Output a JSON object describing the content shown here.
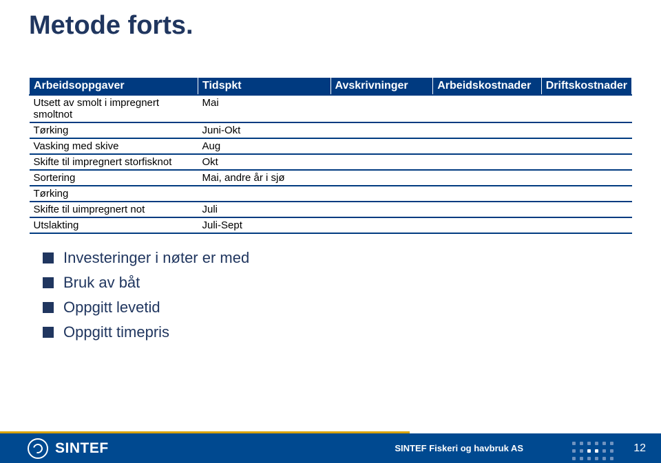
{
  "title": "Metode forts.",
  "table": {
    "headers": [
      "Arbeidsoppgaver",
      "Tidspkt",
      "Avskrivninger",
      "Arbeidskostnader",
      "Driftskostnader"
    ],
    "rows": [
      [
        "Utsett av smolt i impregnert smoltnot",
        "Mai",
        "",
        "",
        ""
      ],
      [
        "Tørking",
        "Juni-Okt",
        "",
        "",
        ""
      ],
      [
        "Vasking med skive",
        "Aug",
        "",
        "",
        ""
      ],
      [
        "Skifte til impregnert storfisknot",
        "Okt",
        "",
        "",
        ""
      ],
      [
        "Sortering",
        "Mai, andre år i sjø",
        "",
        "",
        ""
      ],
      [
        "Tørking",
        "",
        "",
        "",
        ""
      ],
      [
        "Skifte til uimpregnert not",
        "Juli",
        "",
        "",
        ""
      ],
      [
        "Utslakting",
        "Juli-Sept",
        "",
        "",
        ""
      ]
    ]
  },
  "bullets": [
    "Investeringer i nøter er med",
    "Bruk av båt",
    "Oppgitt levetid",
    "Oppgitt timepris"
  ],
  "footer": {
    "logo_text": "SINTEF",
    "caption": "SINTEF Fiskeri og havbruk AS",
    "page": "12"
  },
  "colors": {
    "title": "#20365f",
    "table_header_bg": "#003a80",
    "bullet": "#20365f",
    "footer_bg": "#004990",
    "accent_line": "#d9a200"
  }
}
